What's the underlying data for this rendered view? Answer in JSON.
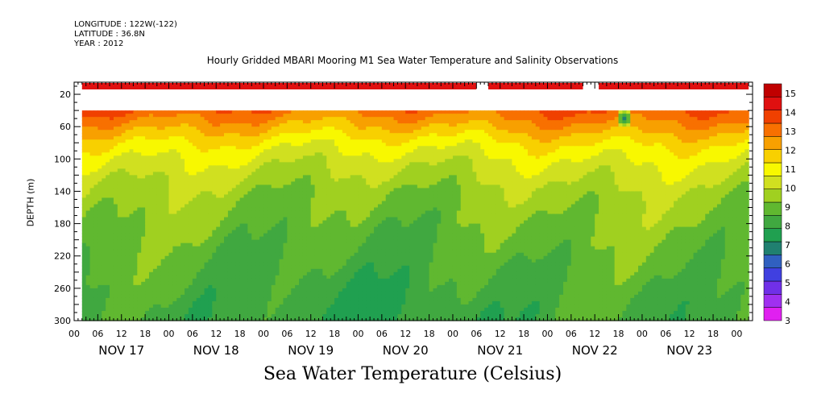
{
  "header": {
    "longitude": "LONGITUDE : 122W(-122)",
    "latitude": "LATITUDE : 36.8N",
    "year": "YEAR : 2012"
  },
  "chart_data": {
    "type": "heatmap",
    "title": "Hourly Gridded MBARI Mooring M1 Sea Water Temperature and Salinity Observations",
    "xlabel": "Sea Water Temperature (Celsius)",
    "ylabel": "DEPTH (m)",
    "xlim_hours": [
      0,
      172
    ],
    "ylim": [
      300,
      5
    ],
    "y_ticks": [
      20,
      60,
      100,
      140,
      180,
      220,
      260,
      300
    ],
    "x_hour_labels": [
      "00",
      "06",
      "12",
      "18"
    ],
    "day_labels": [
      "NOV 17",
      "NOV 18",
      "NOV 19",
      "NOV 20",
      "NOV 21",
      "NOV 22",
      "NOV 23"
    ],
    "data_start_hour": 2,
    "data_end_hour": 171,
    "surface_depth_range": [
      6,
      14
    ],
    "surface_gaps_hours": [
      [
        102,
        105
      ],
      [
        129,
        133
      ]
    ],
    "surface_temperature": 14.3,
    "column_top_depth": 40,
    "colorbar": {
      "min": 3,
      "max": 15.5,
      "labels": [
        3,
        4,
        5,
        6,
        7,
        8,
        9,
        10,
        11,
        12,
        13,
        14,
        15
      ],
      "colors": [
        "#e020f0",
        "#a030f0",
        "#7030e8",
        "#4040e0",
        "#3060c0",
        "#208070",
        "#20a050",
        "#40a840",
        "#60b830",
        "#a0d020",
        "#d0e020",
        "#f8f800",
        "#f8d000",
        "#f8a000",
        "#f87000",
        "#f04000",
        "#e01010",
        "#c00000"
      ]
    },
    "profile": {
      "depths": [
        40,
        60,
        80,
        100,
        120,
        140,
        160,
        180,
        200,
        220,
        240,
        260,
        280,
        300
      ],
      "temperatures": [
        13.2,
        12.2,
        11.2,
        10.5,
        10.0,
        9.6,
        9.3,
        9.1,
        8.9,
        8.7,
        8.5,
        8.35,
        8.2,
        8.1
      ]
    },
    "anomaly": {
      "hour": 139,
      "depth": 48,
      "temperature": 7.0
    }
  }
}
